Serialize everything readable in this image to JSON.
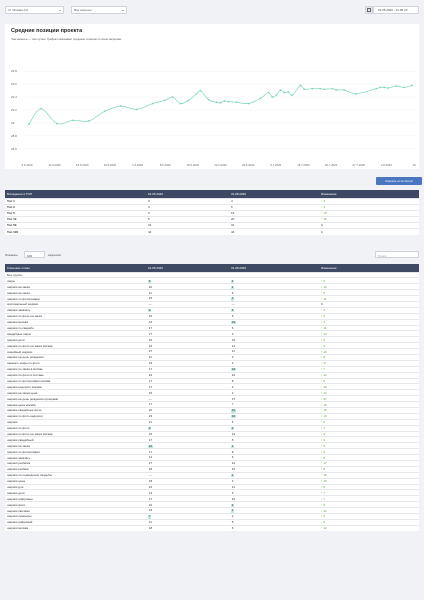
{
  "filters": {
    "region": "Москва (ru)",
    "queries": "Все запросы",
    "date_range": "01.05.2020 - 31.05.20"
  },
  "chart_card": {
    "title": "Средние позиции проекта",
    "subtitle": "Чем меньше — тем лучше. График показывает среднюю позицию по всем запросам."
  },
  "chart_data": {
    "type": "line",
    "color": "#7fd4bd",
    "y_ticks": [
      29.8,
      29.6,
      29.4,
      29.2,
      29.0,
      28.8,
      28.6
    ],
    "ylim": [
      28.55,
      29.85
    ],
    "x_ticks": [
      "4.5.2020",
      "11.5.2020",
      "18.5.2020",
      "25.5.2020",
      "1.6.2020",
      "8.6.2020",
      "15.6.2020",
      "22.6.2020",
      "29.6.2020",
      "6.7.2020",
      "13.7.2020",
      "20.7.2020",
      "27.7.2020",
      "3.8.2020",
      "10"
    ],
    "points": [
      [
        1,
        28.98
      ],
      [
        4,
        29.22
      ],
      [
        8,
        28.99
      ],
      [
        12,
        29.04
      ],
      [
        16,
        29.03
      ],
      [
        20,
        29.18
      ],
      [
        24,
        29.26
      ],
      [
        28,
        29.21
      ],
      [
        32,
        29.3
      ],
      [
        35,
        29.35
      ],
      [
        37,
        29.4
      ],
      [
        39,
        29.3
      ],
      [
        41,
        29.35
      ],
      [
        43,
        29.45
      ],
      [
        44,
        29.5
      ],
      [
        46,
        29.36
      ],
      [
        48,
        29.32
      ],
      [
        49,
        29.31
      ],
      [
        50,
        29.34
      ],
      [
        51,
        29.33
      ],
      [
        53,
        29.32
      ],
      [
        56,
        29.3
      ],
      [
        59,
        29.38
      ],
      [
        61,
        29.47
      ],
      [
        62,
        29.4
      ],
      [
        63,
        29.43
      ],
      [
        64,
        29.51
      ],
      [
        65,
        29.47
      ],
      [
        66,
        29.48
      ],
      [
        67,
        29.43
      ],
      [
        69,
        29.58
      ],
      [
        70,
        29.52
      ],
      [
        72,
        29.53
      ],
      [
        74,
        29.53
      ],
      [
        75,
        29.52
      ],
      [
        77,
        29.53
      ],
      [
        78,
        29.51
      ],
      [
        80,
        29.51
      ],
      [
        83,
        29.45
      ],
      [
        88,
        29.53
      ],
      [
        89,
        29.55
      ],
      [
        90,
        29.55
      ],
      [
        91,
        29.54
      ],
      [
        93,
        29.57
      ],
      [
        95,
        29.55
      ],
      [
        97,
        29.58
      ]
    ],
    "x_total_days": 98
  },
  "export_button": "Скачать отчет Excel",
  "top_table": {
    "headers": [
      "Вхождение в ТОП",
      "01.05.2020",
      "31.08.2020",
      "Изменение"
    ],
    "rows": [
      [
        "Топ 1",
        "0",
        "4",
        "↑ 4"
      ],
      [
        "Топ 3",
        "3",
        "6",
        "↑ 3"
      ],
      [
        "Топ 5",
        "0",
        "13",
        "↑ 13"
      ],
      [
        "Топ 10",
        "5",
        "20",
        "↑ 15"
      ],
      [
        "Топ 50",
        "31",
        "31",
        "0"
      ],
      [
        "Топ 100",
        "42",
        "42",
        "0"
      ]
    ]
  },
  "paging": {
    "show_label": "Показать",
    "show_value": "100",
    "per_label": "запросов",
    "search_placeholder": "Поиск:"
  },
  "kw_table": {
    "headers": [
      "Ключевое слово",
      "01.05.2020",
      "31.08.2020",
      "Изменение"
    ],
    "rows": [
      [
        "Без группы",
        "",
        "",
        "",
        false,
        false
      ],
      [
        "шары",
        "6",
        "1",
        "↑ 5",
        true,
        true
      ],
      [
        "шарики на заказ",
        "20",
        "1",
        "↑ 19",
        false,
        true
      ],
      [
        "шарики на заказ",
        "11",
        "6",
        "↑ 5",
        false,
        false
      ],
      [
        "шарики по фотографии",
        "15",
        "4",
        "↑ 11",
        false,
        true
      ],
      [
        "оригинальный шарики",
        "—",
        "—",
        "0",
        false,
        false
      ],
      [
        "шарики заказать",
        "9",
        "5",
        "↑ 4",
        true,
        true
      ],
      [
        "шарики по фото на заказ",
        "10",
        "5",
        "↑ 5",
        false,
        false
      ],
      [
        "шарики москва",
        "14",
        "10",
        "↑ 4",
        false,
        true
      ],
      [
        "шарики по свадьбе",
        "17",
        "6",
        "↑ 11",
        false,
        false
      ],
      [
        "свадебные шары",
        "17",
        "3",
        "↑ 14",
        false,
        false
      ],
      [
        "шарики дети",
        "15",
        "10",
        "↑ 5",
        false,
        false
      ],
      [
        "шарики по фото на заказ москва",
        "16",
        "13",
        "↑ 3",
        false,
        false
      ],
      [
        "семейный шарики",
        "27",
        "11",
        "↑ 16",
        false,
        false
      ],
      [
        "шарики на день рождения",
        "11",
        "3",
        "↑ 8",
        false,
        false
      ],
      [
        "заказать шары по фото",
        "19",
        "2",
        "↑ 17",
        false,
        false
      ],
      [
        "шарики по заказ в москве",
        "17",
        "10",
        "↑ 7",
        false,
        true
      ],
      [
        "шарики по фото в составе",
        "22",
        "10",
        "↑ 12",
        false,
        false
      ],
      [
        "шарики по фотографии москва",
        "17",
        "8",
        "↑ 9",
        false,
        false
      ],
      [
        "шарики недорого москва",
        "17",
        "4",
        "↑ 13",
        false,
        false
      ],
      [
        "шарики на заказ цена",
        "15",
        "3",
        "↑ 12",
        false,
        false
      ],
      [
        "шарики на день рождения купюрами",
        "—",
        "37",
        "↑ 37",
        false,
        false
      ],
      [
        "шарики цена москва",
        "17",
        "7",
        "↑ 10",
        false,
        false
      ],
      [
        "шарики свадебные фото",
        "20",
        "10",
        "↑ 10",
        false,
        true
      ],
      [
        "шарики по фото недорого",
        "23",
        "10",
        "↑ 13",
        false,
        true
      ],
      [
        "шарики",
        "11",
        "5",
        "↑ 6",
        false,
        false
      ],
      [
        "шарики по фото",
        "9",
        "2",
        "↑ 7",
        true,
        true
      ],
      [
        "шарики по фото на заказ москва",
        "15",
        "12",
        "↑ 3",
        false,
        false
      ],
      [
        "шарики свадебный",
        "17",
        "8",
        "↑ 9",
        false,
        false
      ],
      [
        "шарики на заказ",
        "10",
        "1",
        "↑ 9",
        true,
        true
      ],
      [
        "шарики по фотографии",
        "17",
        "8",
        "↑ 9",
        false,
        false
      ],
      [
        "шарики заказать",
        "14",
        "6",
        "↑ 8",
        false,
        false
      ],
      [
        "шарики рыбалка",
        "27",
        "10",
        "↑ 17",
        false,
        false
      ],
      [
        "шарики рыбака",
        "18",
        "10",
        "↑ 8",
        false,
        false
      ],
      [
        "шарики по подводному свадьбы",
        "—",
        "1",
        "↑ 19",
        false,
        true
      ],
      [
        "шарики цена",
        "18",
        "3",
        "↑ 15",
        false,
        false
      ],
      [
        "шарики для",
        "16",
        "11",
        "↑ 5",
        false,
        false
      ],
      [
        "шарики дети",
        "13",
        "6",
        "↑ 7",
        false,
        false
      ],
      [
        "шарики цифровые",
        "17",
        "10",
        "↑ 7",
        false,
        false
      ],
      [
        "шарики фото",
        "10",
        "1",
        "↑ 9",
        false,
        true
      ],
      [
        "шарики свечами",
        "23",
        "1",
        "↑ 22",
        false,
        true
      ],
      [
        "шарики сувениры",
        "7",
        "2",
        "↑ 5",
        true,
        false
      ],
      [
        "шарики цифровой",
        "11",
        "5",
        "↑ 6",
        false,
        false
      ],
      [
        "шарики москва",
        "18",
        "6",
        "↑ 12",
        false,
        false
      ]
    ]
  }
}
